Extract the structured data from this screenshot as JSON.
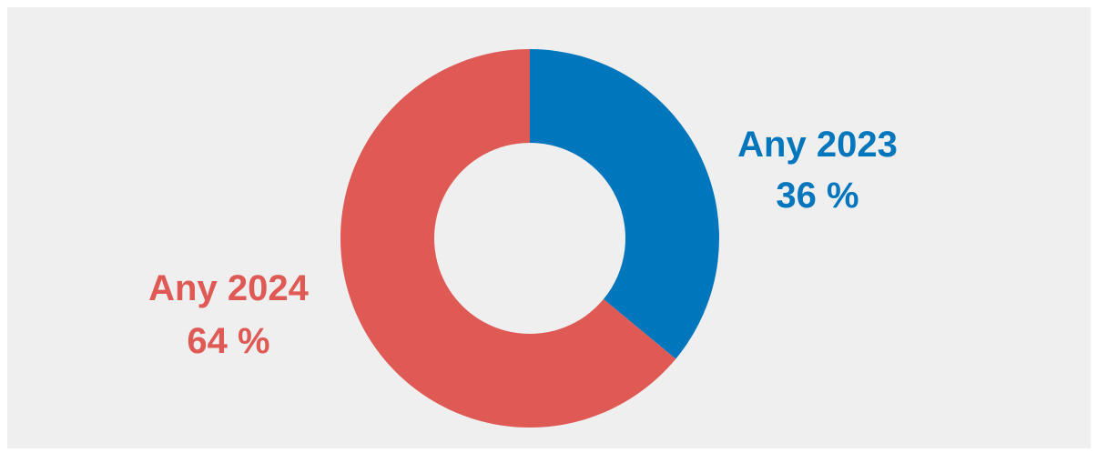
{
  "chart_data": {
    "type": "pie",
    "donut": true,
    "legend": "none",
    "series": [
      {
        "name": "Any 2023",
        "value": 36,
        "value_label": "36 %",
        "color": "#0076bd"
      },
      {
        "name": "Any 2024",
        "value": 64,
        "value_label": "64 %",
        "color": "#df5a55"
      }
    ]
  }
}
